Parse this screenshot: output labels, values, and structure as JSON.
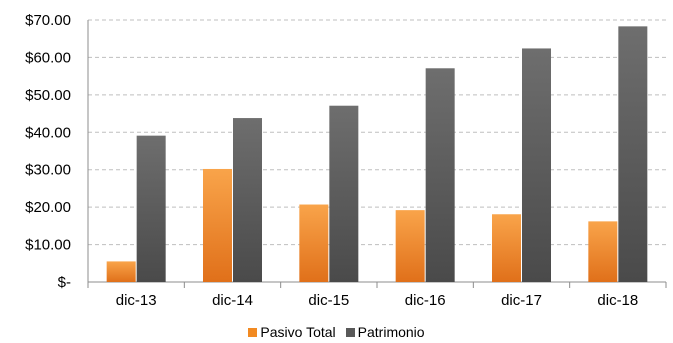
{
  "chart_data": {
    "type": "bar",
    "categories": [
      "dic-13",
      "dic-14",
      "dic-15",
      "dic-16",
      "dic-17",
      "dic-18"
    ],
    "series": [
      {
        "name": "Pasivo Total",
        "values": [
          5.5,
          30.2,
          20.7,
          19.2,
          18.1,
          16.2
        ],
        "color": "#f28a22"
      },
      {
        "name": "Patrimonio",
        "values": [
          39.1,
          43.8,
          47.1,
          57.1,
          62.4,
          68.3
        ],
        "color": "#595959"
      }
    ],
    "y_ticks": [
      {
        "value": 0,
        "label": "$-"
      },
      {
        "value": 10,
        "label": "$10.00"
      },
      {
        "value": 20,
        "label": "$20.00"
      },
      {
        "value": 30,
        "label": "$30.00"
      },
      {
        "value": 40,
        "label": "$40.00"
      },
      {
        "value": 50,
        "label": "$50.00"
      },
      {
        "value": 60,
        "label": "$60.00"
      },
      {
        "value": 70,
        "label": "$70.00"
      }
    ],
    "ylim": [
      0,
      70
    ],
    "title": "",
    "xlabel": "",
    "ylabel": "",
    "grid": "horizontal dashed",
    "legend_position": "bottom"
  }
}
